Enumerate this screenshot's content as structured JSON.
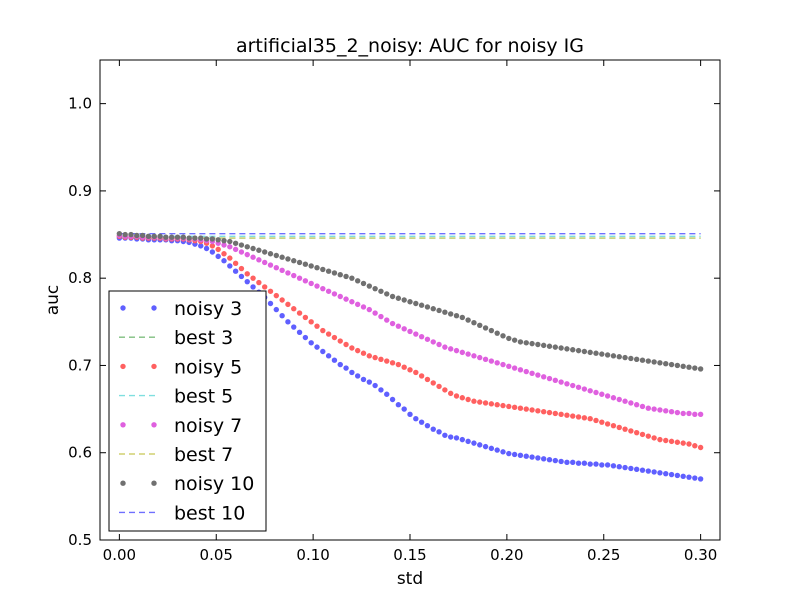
{
  "chart_data": {
    "type": "scatter",
    "title": "artificial35_2_noisy: AUC for noisy IG",
    "xlabel": "std",
    "ylabel": "auc",
    "xlim": [
      -0.01,
      0.31
    ],
    "ylim": [
      0.5,
      1.05
    ],
    "xticks": [
      "0.00",
      "0.05",
      "0.10",
      "0.15",
      "0.20",
      "0.25",
      "0.30"
    ],
    "yticks": [
      "0.5",
      "0.6",
      "0.7",
      "0.8",
      "0.9",
      "1.0"
    ],
    "grid": false,
    "legend_position": "lower-left",
    "x_start": 0.0,
    "x_step": 0.003,
    "series": [
      {
        "name": "noisy 3",
        "kind": "points",
        "color": "#5f5fff",
        "values": [
          0.846,
          0.846,
          0.846,
          0.845,
          0.845,
          0.844,
          0.844,
          0.844,
          0.844,
          0.843,
          0.843,
          0.842,
          0.841,
          0.839,
          0.837,
          0.834,
          0.83,
          0.825,
          0.82,
          0.814,
          0.808,
          0.802,
          0.796,
          0.79,
          0.784,
          0.778,
          0.771,
          0.764,
          0.757,
          0.75,
          0.744,
          0.738,
          0.732,
          0.726,
          0.721,
          0.716,
          0.711,
          0.706,
          0.701,
          0.697,
          0.692,
          0.688,
          0.684,
          0.681,
          0.677,
          0.672,
          0.667,
          0.661,
          0.655,
          0.65,
          0.644,
          0.639,
          0.635,
          0.631,
          0.627,
          0.624,
          0.62,
          0.618,
          0.617,
          0.615,
          0.613,
          0.611,
          0.609,
          0.607,
          0.605,
          0.603,
          0.601,
          0.599,
          0.598,
          0.597,
          0.596,
          0.595,
          0.594,
          0.593,
          0.592,
          0.591,
          0.59,
          0.589,
          0.589,
          0.588,
          0.588,
          0.587,
          0.587,
          0.586,
          0.586,
          0.585,
          0.584,
          0.583,
          0.582,
          0.581,
          0.58,
          0.579,
          0.578,
          0.577,
          0.576,
          0.575,
          0.574,
          0.573,
          0.572,
          0.571,
          0.57
        ]
      },
      {
        "name": "best 3",
        "kind": "dashed",
        "color": "#7fbf7f",
        "values": [
          0.846,
          0.846
        ]
      },
      {
        "name": "noisy 5",
        "kind": "points",
        "color": "#ff6060",
        "values": [
          0.848,
          0.847,
          0.847,
          0.847,
          0.846,
          0.846,
          0.846,
          0.846,
          0.845,
          0.845,
          0.845,
          0.845,
          0.844,
          0.843,
          0.842,
          0.84,
          0.837,
          0.833,
          0.828,
          0.823,
          0.817,
          0.811,
          0.805,
          0.8,
          0.795,
          0.79,
          0.785,
          0.78,
          0.775,
          0.77,
          0.765,
          0.76,
          0.755,
          0.75,
          0.745,
          0.74,
          0.736,
          0.732,
          0.728,
          0.724,
          0.72,
          0.717,
          0.714,
          0.711,
          0.709,
          0.707,
          0.705,
          0.703,
          0.701,
          0.698,
          0.695,
          0.692,
          0.688,
          0.684,
          0.68,
          0.676,
          0.672,
          0.668,
          0.665,
          0.663,
          0.661,
          0.659,
          0.658,
          0.657,
          0.656,
          0.655,
          0.654,
          0.653,
          0.652,
          0.651,
          0.65,
          0.649,
          0.648,
          0.647,
          0.646,
          0.645,
          0.644,
          0.643,
          0.642,
          0.641,
          0.64,
          0.639,
          0.637,
          0.635,
          0.633,
          0.631,
          0.629,
          0.627,
          0.625,
          0.623,
          0.621,
          0.619,
          0.617,
          0.615,
          0.614,
          0.613,
          0.612,
          0.611,
          0.61,
          0.608,
          0.606
        ]
      },
      {
        "name": "best 5",
        "kind": "dashed",
        "color": "#7fdfdf",
        "values": [
          0.848,
          0.848
        ]
      },
      {
        "name": "noisy 7",
        "kind": "points",
        "color": "#df60df",
        "values": [
          0.849,
          0.848,
          0.848,
          0.848,
          0.847,
          0.847,
          0.847,
          0.847,
          0.846,
          0.846,
          0.846,
          0.846,
          0.845,
          0.845,
          0.844,
          0.843,
          0.842,
          0.84,
          0.838,
          0.836,
          0.833,
          0.83,
          0.827,
          0.824,
          0.821,
          0.818,
          0.815,
          0.812,
          0.809,
          0.806,
          0.803,
          0.8,
          0.797,
          0.794,
          0.791,
          0.788,
          0.785,
          0.782,
          0.779,
          0.776,
          0.773,
          0.77,
          0.767,
          0.764,
          0.76,
          0.756,
          0.752,
          0.748,
          0.745,
          0.742,
          0.739,
          0.736,
          0.733,
          0.73,
          0.727,
          0.724,
          0.721,
          0.719,
          0.717,
          0.715,
          0.713,
          0.711,
          0.709,
          0.707,
          0.705,
          0.703,
          0.701,
          0.699,
          0.697,
          0.695,
          0.693,
          0.691,
          0.689,
          0.687,
          0.685,
          0.683,
          0.681,
          0.679,
          0.677,
          0.675,
          0.673,
          0.671,
          0.669,
          0.667,
          0.665,
          0.663,
          0.661,
          0.659,
          0.657,
          0.655,
          0.653,
          0.651,
          0.65,
          0.649,
          0.648,
          0.647,
          0.646,
          0.645,
          0.645,
          0.644,
          0.644
        ]
      },
      {
        "name": "best 7",
        "kind": "dashed",
        "color": "#d0d070",
        "values": [
          0.846,
          0.846
        ]
      },
      {
        "name": "noisy 10",
        "kind": "points",
        "color": "#707070",
        "values": [
          0.851,
          0.85,
          0.85,
          0.849,
          0.849,
          0.848,
          0.848,
          0.848,
          0.847,
          0.847,
          0.847,
          0.847,
          0.846,
          0.846,
          0.846,
          0.845,
          0.845,
          0.844,
          0.843,
          0.842,
          0.84,
          0.838,
          0.836,
          0.834,
          0.832,
          0.83,
          0.828,
          0.826,
          0.824,
          0.822,
          0.82,
          0.818,
          0.816,
          0.814,
          0.812,
          0.81,
          0.808,
          0.806,
          0.804,
          0.802,
          0.8,
          0.797,
          0.794,
          0.791,
          0.788,
          0.785,
          0.782,
          0.779,
          0.777,
          0.775,
          0.773,
          0.771,
          0.769,
          0.767,
          0.765,
          0.763,
          0.761,
          0.759,
          0.757,
          0.755,
          0.752,
          0.749,
          0.746,
          0.743,
          0.74,
          0.737,
          0.734,
          0.731,
          0.729,
          0.727,
          0.726,
          0.725,
          0.724,
          0.723,
          0.722,
          0.721,
          0.72,
          0.719,
          0.718,
          0.717,
          0.716,
          0.715,
          0.714,
          0.713,
          0.712,
          0.711,
          0.71,
          0.709,
          0.708,
          0.707,
          0.706,
          0.705,
          0.704,
          0.703,
          0.702,
          0.701,
          0.7,
          0.699,
          0.698,
          0.697,
          0.696
        ]
      },
      {
        "name": "best 10",
        "kind": "dashed",
        "color": "#6f6fff",
        "values": [
          0.851,
          0.851
        ]
      }
    ]
  }
}
